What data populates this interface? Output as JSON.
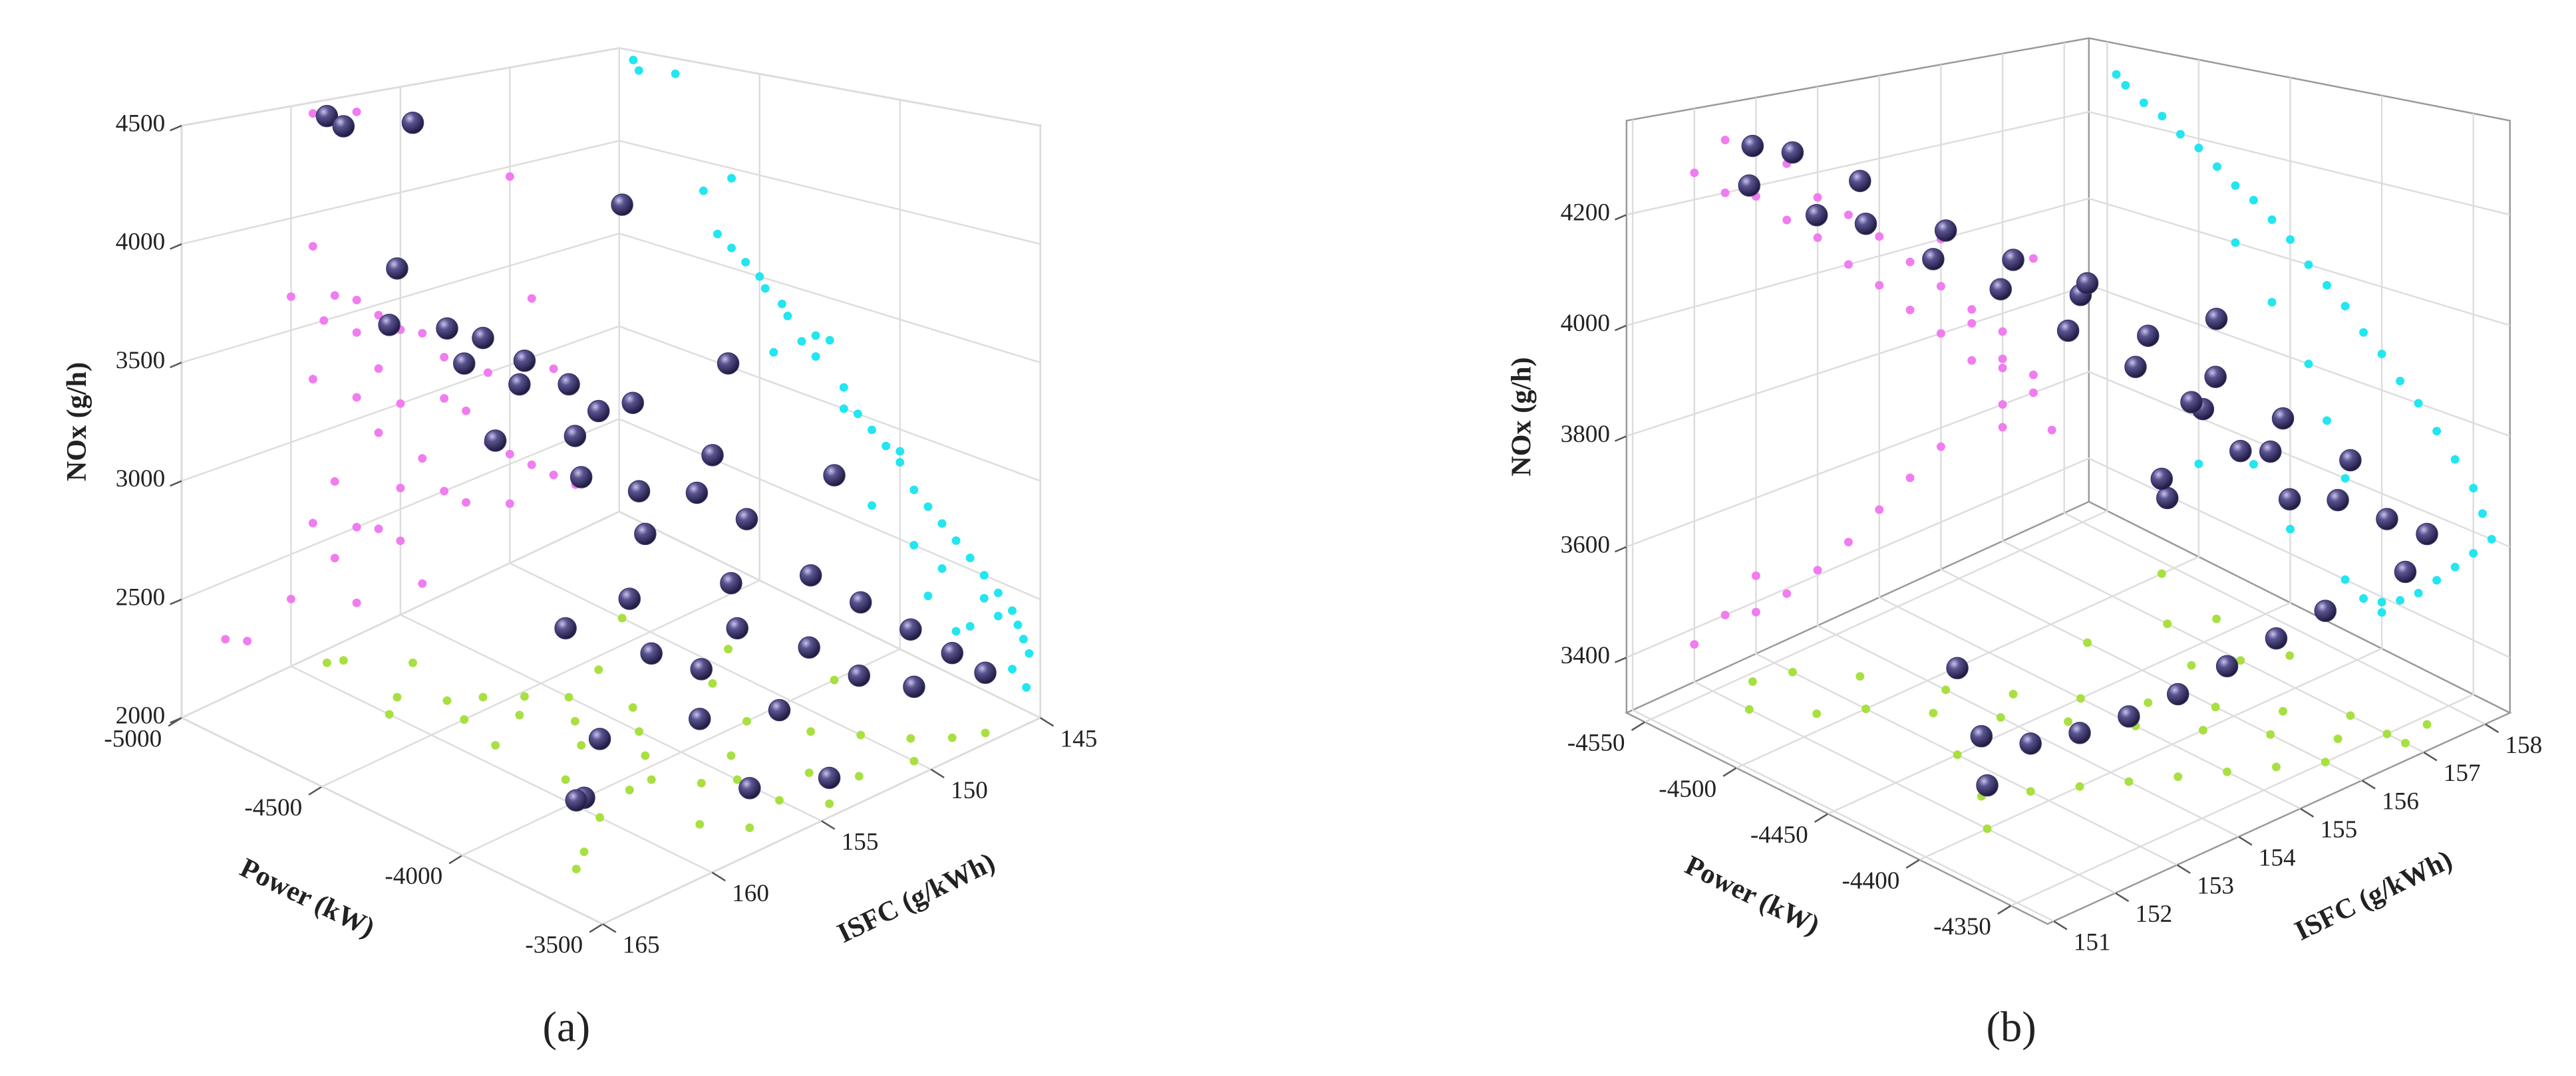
{
  "chart_data": [
    {
      "type": "scatter3d",
      "panel_label": "(a)",
      "x_label": "Power (kW)",
      "y_label": "ISFC (g/kWh)",
      "z_label": "NOx (g/h)",
      "xlim": [
        -5000,
        -3500
      ],
      "xticks": [
        -5000,
        -4500,
        -4000,
        -3500
      ],
      "ylim": [
        145,
        165
      ],
      "yticks": [
        145,
        150,
        155,
        160,
        165
      ],
      "y_inverted": true,
      "zlim": [
        2000,
        4500
      ],
      "zticks": [
        2000,
        2500,
        3000,
        3500,
        4000,
        4500
      ],
      "point_color": "#3a3468",
      "left_wall_color": "#f07cf0",
      "right_wall_color": "#22e6f0",
      "floor_color": "#a8e040",
      "x": [
        -4950,
        -4930,
        -4800,
        -4700,
        -4650,
        -4600,
        -4550,
        -4500,
        -4480,
        -4420,
        -4400,
        -4350,
        -4300,
        -4250,
        -4200,
        -4150,
        -4100,
        -4050,
        -4000,
        -3950,
        -3900,
        -3850,
        -3800,
        -3750,
        -3700,
        -3650,
        -3600,
        -3580,
        -3560,
        -3540,
        -4600,
        -4300,
        -4000,
        -3900,
        -3800,
        -3750,
        -4200,
        -4100,
        -3950,
        -3850,
        -3700,
        -3650,
        -3600,
        -3550,
        -4450
      ],
      "y": [
        159,
        158.5,
        157,
        159,
        160,
        158,
        157,
        158.5,
        156,
        157,
        155,
        159,
        156,
        154,
        157,
        155,
        153,
        156,
        152,
        158,
        154,
        151,
        155,
        150,
        153,
        149,
        152,
        148,
        150,
        147,
        150,
        149,
        148,
        160,
        162,
        163,
        151,
        159,
        157,
        156,
        158,
        155,
        157,
        154,
        153
      ],
      "z": [
        4450,
        4400,
        4420,
        3850,
        3650,
        3600,
        3550,
        3500,
        3450,
        3400,
        3350,
        3250,
        3200,
        3300,
        3100,
        3000,
        2950,
        2900,
        2850,
        2750,
        2700,
        2650,
        2600,
        2550,
        2500,
        2450,
        2400,
        2350,
        2300,
        2250,
        3950,
        3300,
        2900,
        2300,
        2200,
        2250,
        3000,
        2600,
        2500,
        2450,
        2400,
        2350,
        2150,
        2100,
        3150
      ]
    },
    {
      "type": "scatter3d",
      "panel_label": "(b)",
      "x_label": "Power (kW)",
      "y_label": "ISFC (g/kWh)",
      "z_label": "NOx (g/h)",
      "xlim": [
        -4560,
        -4330
      ],
      "xticks": [
        -4550,
        -4500,
        -4450,
        -4400,
        -4350
      ],
      "ylim": [
        150.9,
        158.4
      ],
      "yticks": [
        151,
        152,
        153,
        154,
        155,
        156,
        157,
        158
      ],
      "y_inverted": false,
      "zlim": [
        3300,
        4370
      ],
      "zticks": [
        3400,
        3600,
        3800,
        4000,
        4200
      ],
      "point_color": "#3a3468",
      "left_wall_color": "#f07cf0",
      "right_wall_color": "#22e6f0",
      "floor_color": "#a8e040",
      "x": [
        -4545,
        -4540,
        -4530,
        -4520,
        -4510,
        -4500,
        -4490,
        -4480,
        -4470,
        -4460,
        -4450,
        -4440,
        -4430,
        -4420,
        -4410,
        -4400,
        -4390,
        -4380,
        -4370,
        -4360,
        -4350,
        -4345,
        -4340,
        -4350,
        -4360,
        -4370,
        -4380,
        -4390,
        -4400,
        -4410,
        -4420,
        -4430,
        -4440,
        -4460,
        -4480,
        -4400,
        -4420,
        -4450,
        -4470,
        -4500
      ],
      "y": [
        152.5,
        153,
        152,
        153.5,
        152.5,
        153,
        154,
        153.5,
        154.5,
        154,
        155,
        154.5,
        155.5,
        155,
        156,
        155.5,
        156.5,
        156,
        157,
        156.5,
        157,
        157.5,
        157,
        156,
        155.5,
        155,
        154.5,
        154,
        153.5,
        153,
        157.5,
        157,
        156.5,
        157.5,
        156,
        152,
        152.5,
        153,
        157,
        157.8
      ],
      "z": [
        4300,
        4280,
        4250,
        4230,
        4200,
        4180,
        4150,
        4120,
        4100,
        4070,
        4040,
        4000,
        3970,
        3940,
        3900,
        3870,
        3830,
        3800,
        3760,
        3720,
        3680,
        3640,
        3600,
        3560,
        3520,
        3480,
        3440,
        3410,
        3390,
        3380,
        3600,
        3700,
        3800,
        3900,
        4000,
        3370,
        3400,
        3450,
        3550,
        3500
      ]
    }
  ]
}
